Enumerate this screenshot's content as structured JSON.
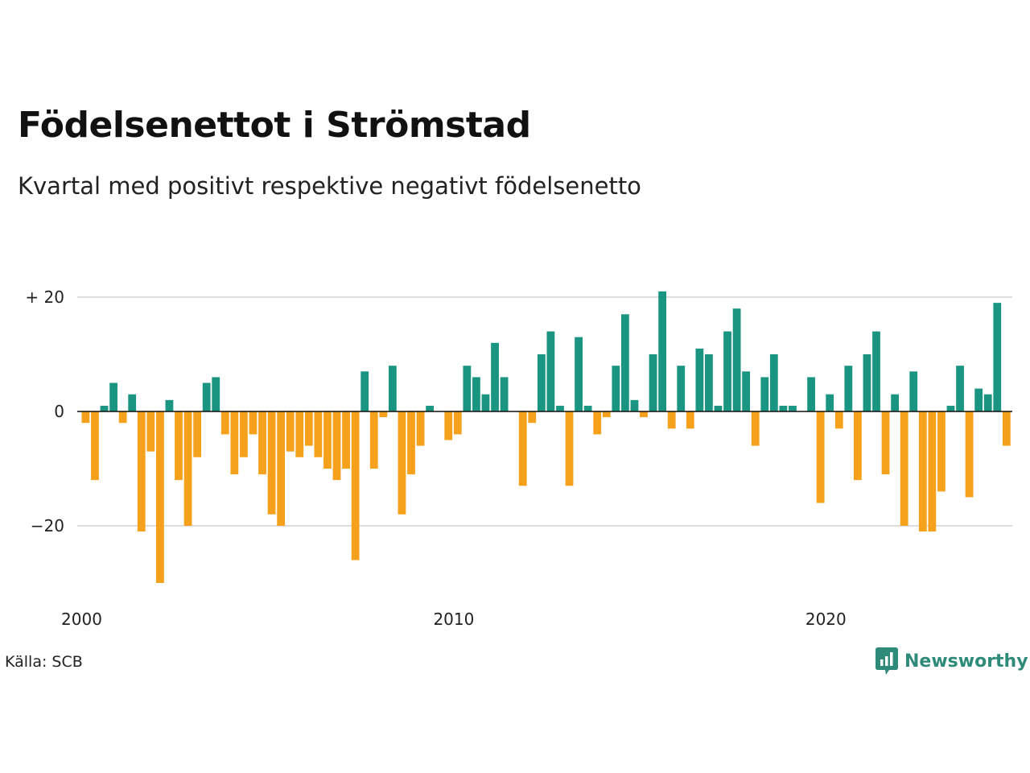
{
  "title": "Födelsenettot i Strömstad",
  "subtitle": "Kvartal med positivt respektive negativt födelsenetto",
  "source": "Källa: SCB",
  "brand": "Newsworthy",
  "colors": {
    "positive": "#1a9582",
    "negative": "#f5a11b",
    "grid": "#dddddd",
    "zero_line": "#111111",
    "brand": "#2e8b7a"
  },
  "chart_data": {
    "type": "bar",
    "xlabel": "",
    "ylabel": "",
    "ylim": [
      -30,
      21
    ],
    "grid": true,
    "y_ticks": [
      {
        "value": 20,
        "label": "+ 20"
      },
      {
        "value": 0,
        "label": "0"
      },
      {
        "value": -20,
        "label": "−20"
      }
    ],
    "x_ticks": [
      {
        "value": 2000,
        "label": "2000"
      },
      {
        "value": 2010,
        "label": "2010"
      },
      {
        "value": 2020,
        "label": "2020"
      }
    ],
    "categories": [
      "2000 K1",
      "2000 K2",
      "2000 K3",
      "2000 K4",
      "2001 K1",
      "2001 K2",
      "2001 K3",
      "2001 K4",
      "2002 K1",
      "2002 K2",
      "2002 K3",
      "2002 K4",
      "2003 K1",
      "2003 K2",
      "2003 K3",
      "2003 K4",
      "2004 K1",
      "2004 K2",
      "2004 K3",
      "2004 K4",
      "2005 K1",
      "2005 K2",
      "2005 K3",
      "2005 K4",
      "2006 K1",
      "2006 K2",
      "2006 K3",
      "2006 K4",
      "2007 K1",
      "2007 K2",
      "2007 K3",
      "2007 K4",
      "2008 K1",
      "2008 K2",
      "2008 K3",
      "2008 K4",
      "2009 K1",
      "2009 K2",
      "2009 K3",
      "2009 K4",
      "2010 K1",
      "2010 K2",
      "2010 K3",
      "2010 K4",
      "2011 K1",
      "2011 K2",
      "2011 K3",
      "2011 K4",
      "2012 K1",
      "2012 K2",
      "2012 K3",
      "2012 K4",
      "2013 K1",
      "2013 K2",
      "2013 K3",
      "2013 K4",
      "2014 K1",
      "2014 K2",
      "2014 K3",
      "2014 K4",
      "2015 K1",
      "2015 K2",
      "2015 K3",
      "2015 K4",
      "2016 K1",
      "2016 K2",
      "2016 K3",
      "2016 K4",
      "2017 K1",
      "2017 K2",
      "2017 K3",
      "2017 K4",
      "2018 K1",
      "2018 K2",
      "2018 K3",
      "2018 K4",
      "2019 K1",
      "2019 K2",
      "2019 K3",
      "2019 K4",
      "2020 K1",
      "2020 K2",
      "2020 K3",
      "2020 K4",
      "2021 K1",
      "2021 K2",
      "2021 K3",
      "2021 K4",
      "2022 K1",
      "2022 K2",
      "2022 K3",
      "2022 K4",
      "2023 K1",
      "2023 K2",
      "2023 K3",
      "2023 K4",
      "2024 K1",
      "2024 K2",
      "2024 K3",
      "2024 K4",
      "2025 K1"
    ],
    "values": [
      -2,
      -12,
      1,
      5,
      -2,
      3,
      -21,
      -7,
      -30,
      2,
      -12,
      -20,
      -8,
      5,
      6,
      -4,
      -11,
      -8,
      -4,
      -11,
      -18,
      -20,
      -7,
      -8,
      -6,
      -8,
      -10,
      -12,
      -10,
      -26,
      7,
      -10,
      -1,
      8,
      -18,
      -11,
      -6,
      1,
      0,
      -5,
      -4,
      8,
      6,
      3,
      12,
      6,
      0,
      -13,
      -2,
      10,
      14,
      1,
      -13,
      13,
      1,
      -4,
      -1,
      8,
      17,
      2,
      -1,
      10,
      21,
      -3,
      8,
      -3,
      11,
      10,
      1,
      14,
      18,
      7,
      -6,
      6,
      10,
      1,
      1,
      0,
      6,
      -16,
      3,
      -3,
      8,
      -12,
      10,
      14,
      -11,
      3,
      -20,
      7,
      -21,
      -21,
      -14,
      1,
      8,
      -15,
      4,
      3,
      19,
      -6,
      0
    ]
  }
}
